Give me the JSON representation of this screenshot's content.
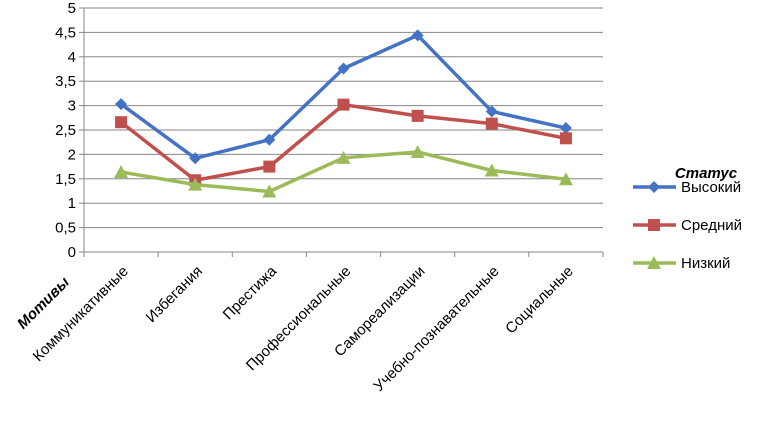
{
  "chart_data": {
    "type": "line",
    "categories": [
      "Коммуникативные",
      "Избегания",
      "Престижа",
      "Профессиональные",
      "Самореализации",
      "Учебно-познавательные",
      "Социальные"
    ],
    "series": [
      {
        "name": "Высокий",
        "color": "#4472C4",
        "marker": "diamond",
        "values": [
          3.03,
          1.92,
          2.3,
          3.76,
          4.44,
          2.88,
          2.54
        ]
      },
      {
        "name": "Средний",
        "color": "#C0504D",
        "marker": "square",
        "values": [
          2.66,
          1.47,
          1.75,
          3.02,
          2.79,
          2.63,
          2.33
        ]
      },
      {
        "name": "Низкий",
        "color": "#9BBB59",
        "marker": "triangle",
        "values": [
          1.64,
          1.38,
          1.24,
          1.93,
          2.05,
          1.67,
          1.49
        ]
      }
    ],
    "xlabel": "Мотивы",
    "ylabel": "",
    "ylim": [
      0,
      5
    ],
    "yticks": [
      "0",
      "0,5",
      "1",
      "1,5",
      "2",
      "2,5",
      "3",
      "3,5",
      "4",
      "4,5",
      "5"
    ],
    "legend_title": "Статус",
    "legend_position": "right",
    "grid": true
  }
}
